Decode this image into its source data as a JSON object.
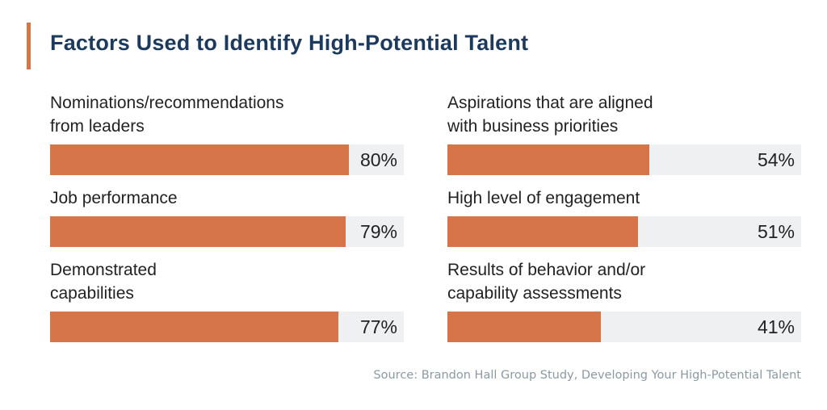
{
  "chart_data": {
    "type": "bar",
    "orientation": "horizontal",
    "title": "Factors Used to Identify High-Potential Talent",
    "categories": [
      "Nominations/recommendations\nfrom leaders",
      "Job performance",
      "Demonstrated\ncapabilities",
      "Aspirations that are aligned\nwith business priorities",
      "High level of engagement",
      "Results of behavior and/or\ncapability assessments"
    ],
    "values": [
      80,
      79,
      77,
      54,
      51,
      41
    ],
    "value_labels": [
      "80%",
      "79%",
      "77%",
      "54%",
      "51%",
      "41%"
    ],
    "unit": "%",
    "layout": "two columns of three",
    "grid": false,
    "source": "Source: Brandon Hall Group Study, Developing Your High-Potential Talent"
  },
  "colors": {
    "bar": "#D6744A",
    "track": "#EFF0F2",
    "title": "#1B3A5E",
    "accent": "#D6744A",
    "source": "#8A9AA3"
  }
}
